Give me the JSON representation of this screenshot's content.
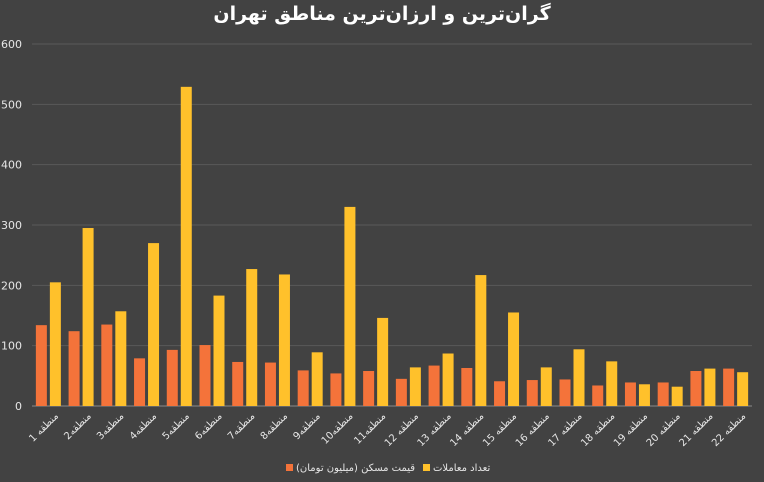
{
  "chart_data": {
    "type": "bar",
    "title": "گران‌ترین و ارزان‌ترین مناطق تهران",
    "xlabel": "",
    "ylabel": "",
    "ylim": [
      0,
      600
    ],
    "yticks": [
      0,
      100,
      200,
      300,
      400,
      500,
      600
    ],
    "grid": true,
    "legend_position": "bottom",
    "categories": [
      "منطقه 1",
      "منطقه2",
      "منطقه3",
      "منطقه4",
      "منطقه5",
      "منطقه6",
      "منطقه7",
      "منطقه8",
      "منطقه9",
      "منطقه10",
      "منطقه11",
      "منطقه 12",
      "منطقه 13",
      "منطقه 14",
      "منطقه 15",
      "منطقه 16",
      "منطقه 17",
      "منطقه 18",
      "منطقه 19",
      "منطقه 20",
      "منطقه 21",
      "منطقه 22"
    ],
    "series": [
      {
        "name": "قیمت مسکن (میلیون تومان)",
        "color": "#f4733a",
        "values": [
          134,
          124,
          135,
          79,
          93,
          101,
          73,
          72,
          59,
          54,
          58,
          45,
          67,
          63,
          41,
          43,
          44,
          34,
          39,
          39,
          58,
          62
        ]
      },
      {
        "name": "تعداد معاملات",
        "color": "#ffc12b",
        "values": [
          205,
          295,
          157,
          270,
          529,
          183,
          227,
          218,
          89,
          330,
          146,
          64,
          87,
          217,
          155,
          64,
          94,
          74,
          36,
          32,
          62,
          56
        ]
      }
    ]
  }
}
